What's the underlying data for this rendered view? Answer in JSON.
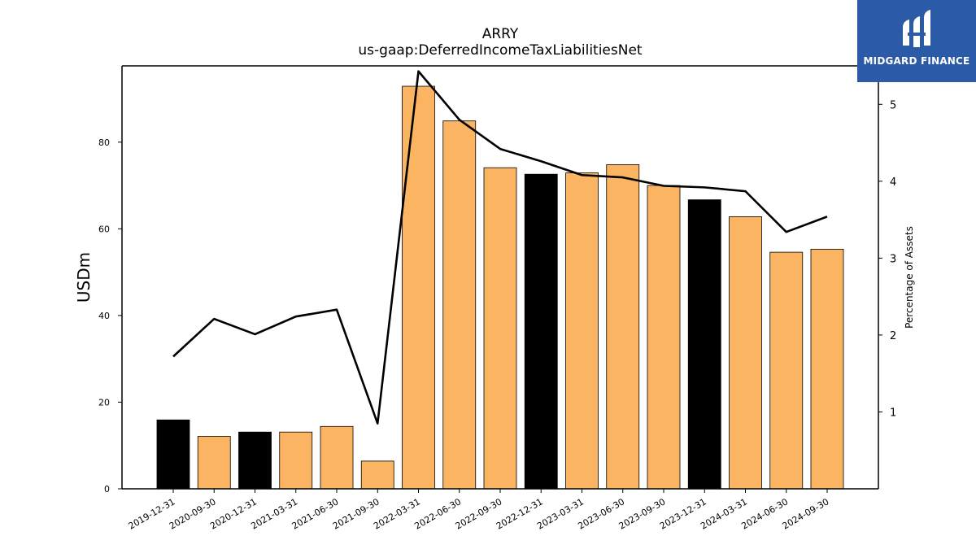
{
  "chart_data": {
    "type": "bar",
    "title": "ARRY",
    "subtitle": "us-gaap:DeferredIncomeTaxLiabilitiesNet",
    "ylabel": "USDm",
    "y2label": "Percentage of Assets",
    "ylim": [
      0,
      97.6
    ],
    "y2lim": [
      0,
      5.5
    ],
    "yticks": [
      0,
      20,
      40,
      60,
      80
    ],
    "y2ticks": [
      1,
      2,
      3,
      4,
      5
    ],
    "grid": false,
    "categories": [
      "2019-12-31",
      "2020-09-30",
      "2020-12-31",
      "2021-03-31",
      "2021-06-30",
      "2021-09-30",
      "2022-03-31",
      "2022-06-30",
      "2022-09-30",
      "2022-12-31",
      "2023-03-31",
      "2023-06-30",
      "2023-09-30",
      "2023-12-31",
      "2024-03-31",
      "2024-06-30",
      "2024-09-30"
    ],
    "series": [
      {
        "type": "bar",
        "values": [
          15.9,
          12.1,
          13.1,
          13.1,
          14.4,
          6.4,
          92.9,
          84.9,
          74.1,
          72.6,
          72.9,
          74.8,
          70.0,
          66.7,
          62.8,
          54.6,
          55.3
        ],
        "highlight": [
          true,
          false,
          true,
          false,
          false,
          false,
          false,
          false,
          false,
          true,
          false,
          false,
          false,
          true,
          false,
          false,
          false
        ]
      },
      {
        "type": "line",
        "axis": "right",
        "values": [
          1.72,
          2.21,
          2.01,
          2.24,
          2.33,
          0.85,
          5.43,
          4.8,
          4.42,
          4.26,
          4.08,
          4.05,
          3.94,
          3.92,
          3.87,
          3.34,
          3.54
        ]
      }
    ]
  },
  "colors": {
    "bar": "#fbb462",
    "bar_highlight": "#000000",
    "line": "#000000",
    "logo_bg": "#2b5aa6"
  },
  "logo": {
    "text": "MIDGARD FINANCE"
  }
}
